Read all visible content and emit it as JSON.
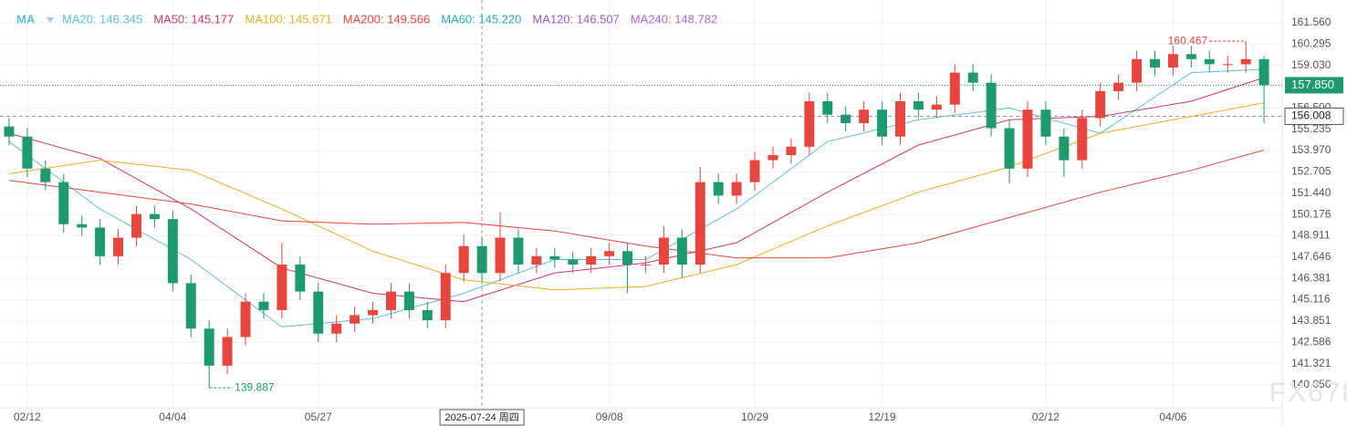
{
  "chart_data": {
    "type": "candlestick",
    "indicator": "MA",
    "legend_items": [
      {
        "label": "MA20: 146.345",
        "color": "#5bc0de"
      },
      {
        "label": "MA50: 145.177",
        "color": "#d6336c"
      },
      {
        "label": "MA100: 145.671",
        "color": "#f0ad20"
      },
      {
        "label": "MA200: 149.566",
        "color": "#e8453c"
      },
      {
        "label": "MA60: 145.220",
        "color": "#20b2aa"
      },
      {
        "label": "MA120: 146.507",
        "color": "#9b59d0"
      },
      {
        "label": "MA240: 148.782",
        "color": "#b266e0"
      }
    ],
    "up_color": "#e8453c",
    "down_color": "#1e9a6f",
    "xlim": [
      -0.5,
      70
    ],
    "xticks": [
      {
        "value": 1,
        "label": "02/12"
      },
      {
        "value": 9,
        "label": "04/04"
      },
      {
        "value": 17,
        "label": "05/27"
      },
      {
        "value": 33,
        "label": "09/08"
      },
      {
        "value": 41,
        "label": "10/29"
      },
      {
        "value": 48,
        "label": "12/19"
      },
      {
        "value": 57,
        "label": "02/12"
      },
      {
        "value": 64,
        "label": "04/06"
      }
    ],
    "ylim": [
      138.81,
      162.91
    ],
    "yticks": [
      {
        "value": 161.56,
        "label": "161.560"
      },
      {
        "value": 160.295,
        "label": "160.295"
      },
      {
        "value": 159.03,
        "label": "159.030"
      },
      {
        "value": 156.5,
        "label": "156.500"
      },
      {
        "value": 155.235,
        "label": "155.235"
      },
      {
        "value": 153.97,
        "label": "153.970"
      },
      {
        "value": 152.705,
        "label": "152.705"
      },
      {
        "value": 151.44,
        "label": "151.440"
      },
      {
        "value": 150.176,
        "label": "150.176"
      },
      {
        "value": 148.911,
        "label": "148.911"
      },
      {
        "value": 147.646,
        "label": "147.646"
      },
      {
        "value": 146.381,
        "label": "146.381"
      },
      {
        "value": 145.116,
        "label": "145.116"
      },
      {
        "value": 143.851,
        "label": "143.851"
      },
      {
        "value": 142.586,
        "label": "142.586"
      },
      {
        "value": 141.321,
        "label": "141.321"
      },
      {
        "value": 140.056,
        "label": "140.056"
      }
    ],
    "grid": true,
    "open": [
      155.4,
      154.8,
      152.9,
      152.1,
      149.6,
      149.4,
      147.7,
      148.8,
      150.2,
      149.9,
      146.1,
      143.4,
      141.2,
      142.9,
      145.0,
      144.5,
      147.2,
      145.6,
      143.1,
      143.7,
      144.2,
      144.5,
      145.6,
      144.5,
      143.9,
      146.7,
      148.3,
      146.7,
      148.8,
      147.2,
      147.7,
      147.5,
      147.2,
      147.7,
      148.0,
      147.2,
      147.2,
      148.8,
      147.2,
      152.1,
      151.3,
      152.1,
      153.4,
      153.7,
      154.2,
      156.9,
      156.1,
      155.6,
      156.4,
      154.8,
      156.9,
      156.4,
      156.7,
      158.6,
      158.0,
      155.3,
      152.9,
      156.4,
      154.8,
      153.4,
      155.9,
      157.5,
      158.0,
      159.4,
      158.9,
      159.7,
      159.4,
      159.1,
      159.1,
      159.4
    ],
    "high": [
      155.9,
      155.3,
      153.4,
      152.6,
      150.1,
      149.9,
      149.3,
      150.7,
      150.7,
      150.4,
      146.6,
      143.9,
      143.4,
      145.5,
      145.5,
      148.5,
      147.7,
      146.1,
      144.2,
      144.7,
      145.0,
      146.1,
      146.1,
      145.0,
      147.2,
      149.0,
      148.8,
      150.3,
      149.3,
      148.2,
      148.2,
      148.0,
      148.2,
      148.5,
      148.5,
      147.7,
      149.5,
      149.3,
      153.0,
      152.6,
      152.6,
      153.9,
      154.2,
      154.7,
      157.4,
      157.4,
      156.6,
      156.9,
      156.9,
      157.4,
      157.4,
      157.2,
      159.1,
      159.1,
      158.5,
      155.8,
      156.9,
      156.9,
      155.3,
      156.4,
      158.0,
      158.5,
      159.9,
      159.9,
      160.2,
      160.2,
      159.9,
      159.6,
      160.467,
      159.6
    ],
    "low": [
      154.3,
      152.4,
      151.6,
      149.1,
      148.9,
      147.2,
      147.2,
      148.3,
      149.4,
      145.6,
      142.9,
      139.887,
      140.7,
      142.4,
      144.0,
      144.0,
      145.1,
      142.6,
      142.6,
      143.2,
      143.7,
      144.0,
      144.0,
      143.4,
      143.4,
      146.2,
      146.2,
      146.2,
      146.7,
      146.7,
      147.0,
      146.7,
      146.7,
      147.2,
      145.5,
      146.7,
      146.7,
      146.4,
      146.7,
      150.8,
      150.8,
      151.6,
      152.9,
      153.2,
      153.7,
      155.6,
      155.1,
      155.1,
      154.3,
      154.3,
      155.9,
      155.9,
      156.2,
      157.5,
      154.8,
      152.0,
      152.4,
      154.3,
      152.4,
      152.9,
      155.4,
      157.0,
      157.5,
      158.4,
      158.4,
      158.9,
      158.6,
      158.6,
      158.6,
      155.6
    ],
    "close": [
      154.8,
      152.9,
      152.1,
      149.6,
      149.4,
      147.7,
      148.8,
      150.2,
      149.9,
      146.1,
      143.4,
      141.2,
      142.9,
      145.0,
      144.5,
      147.2,
      145.6,
      143.1,
      143.7,
      144.2,
      144.5,
      145.6,
      144.5,
      143.9,
      146.7,
      148.3,
      146.7,
      148.8,
      147.2,
      147.7,
      147.5,
      147.2,
      147.7,
      148.0,
      147.2,
      147.2,
      148.8,
      147.2,
      152.1,
      151.3,
      152.1,
      153.4,
      153.7,
      154.2,
      156.9,
      156.1,
      155.6,
      156.4,
      154.8,
      156.9,
      156.4,
      156.7,
      158.6,
      158.0,
      155.3,
      152.9,
      156.4,
      154.8,
      153.4,
      155.9,
      157.5,
      158.0,
      159.4,
      158.9,
      159.7,
      159.4,
      159.1,
      159.1,
      159.4,
      157.85
    ],
    "series": [
      {
        "color": "#5bc0de",
        "x": [
          0,
          5,
          10,
          15,
          20,
          25,
          30,
          35,
          40,
          45,
          50,
          55,
          60,
          65,
          69
        ],
        "values": [
          154.5,
          150.5,
          147.5,
          143.5,
          144.0,
          145.5,
          147.5,
          147.5,
          150.5,
          154.5,
          155.8,
          156.5,
          155.0,
          158.6,
          158.8
        ]
      },
      {
        "color": "#d6336c",
        "x": [
          0,
          5,
          10,
          15,
          20,
          25,
          30,
          35,
          40,
          45,
          50,
          55,
          60,
          65,
          69
        ],
        "values": [
          155.0,
          153.5,
          150.5,
          147.0,
          145.5,
          145.0,
          146.7,
          147.3,
          148.5,
          151.5,
          154.3,
          155.8,
          156.0,
          156.9,
          158.3
        ]
      },
      {
        "color": "#f0ad20",
        "x": [
          0,
          5,
          10,
          15,
          20,
          25,
          30,
          35,
          40,
          45,
          50,
          55,
          60,
          65,
          69
        ],
        "values": [
          152.6,
          153.4,
          152.8,
          150.5,
          148.0,
          146.3,
          145.7,
          145.9,
          147.2,
          149.5,
          151.5,
          153.0,
          155.0,
          156.0,
          156.8
        ]
      },
      {
        "color": "#e8453c",
        "x": [
          0,
          5,
          10,
          15,
          20,
          25,
          30,
          35,
          40,
          45,
          50,
          55,
          60,
          65,
          69
        ],
        "values": [
          152.2,
          151.5,
          150.8,
          149.8,
          149.6,
          149.7,
          149.2,
          148.3,
          147.6,
          147.6,
          148.5,
          150.0,
          151.5,
          152.8,
          154.0
        ]
      }
    ],
    "max_marker": {
      "index": 68,
      "value": 160.467
    },
    "min_marker": {
      "index": 11,
      "value": 139.887
    },
    "last_price": {
      "value": 157.85,
      "label": "157.850"
    },
    "crosshair": {
      "index": 26,
      "value": 156.008,
      "date": "2025-07-24 周四"
    },
    "watermark": "FX678"
  }
}
